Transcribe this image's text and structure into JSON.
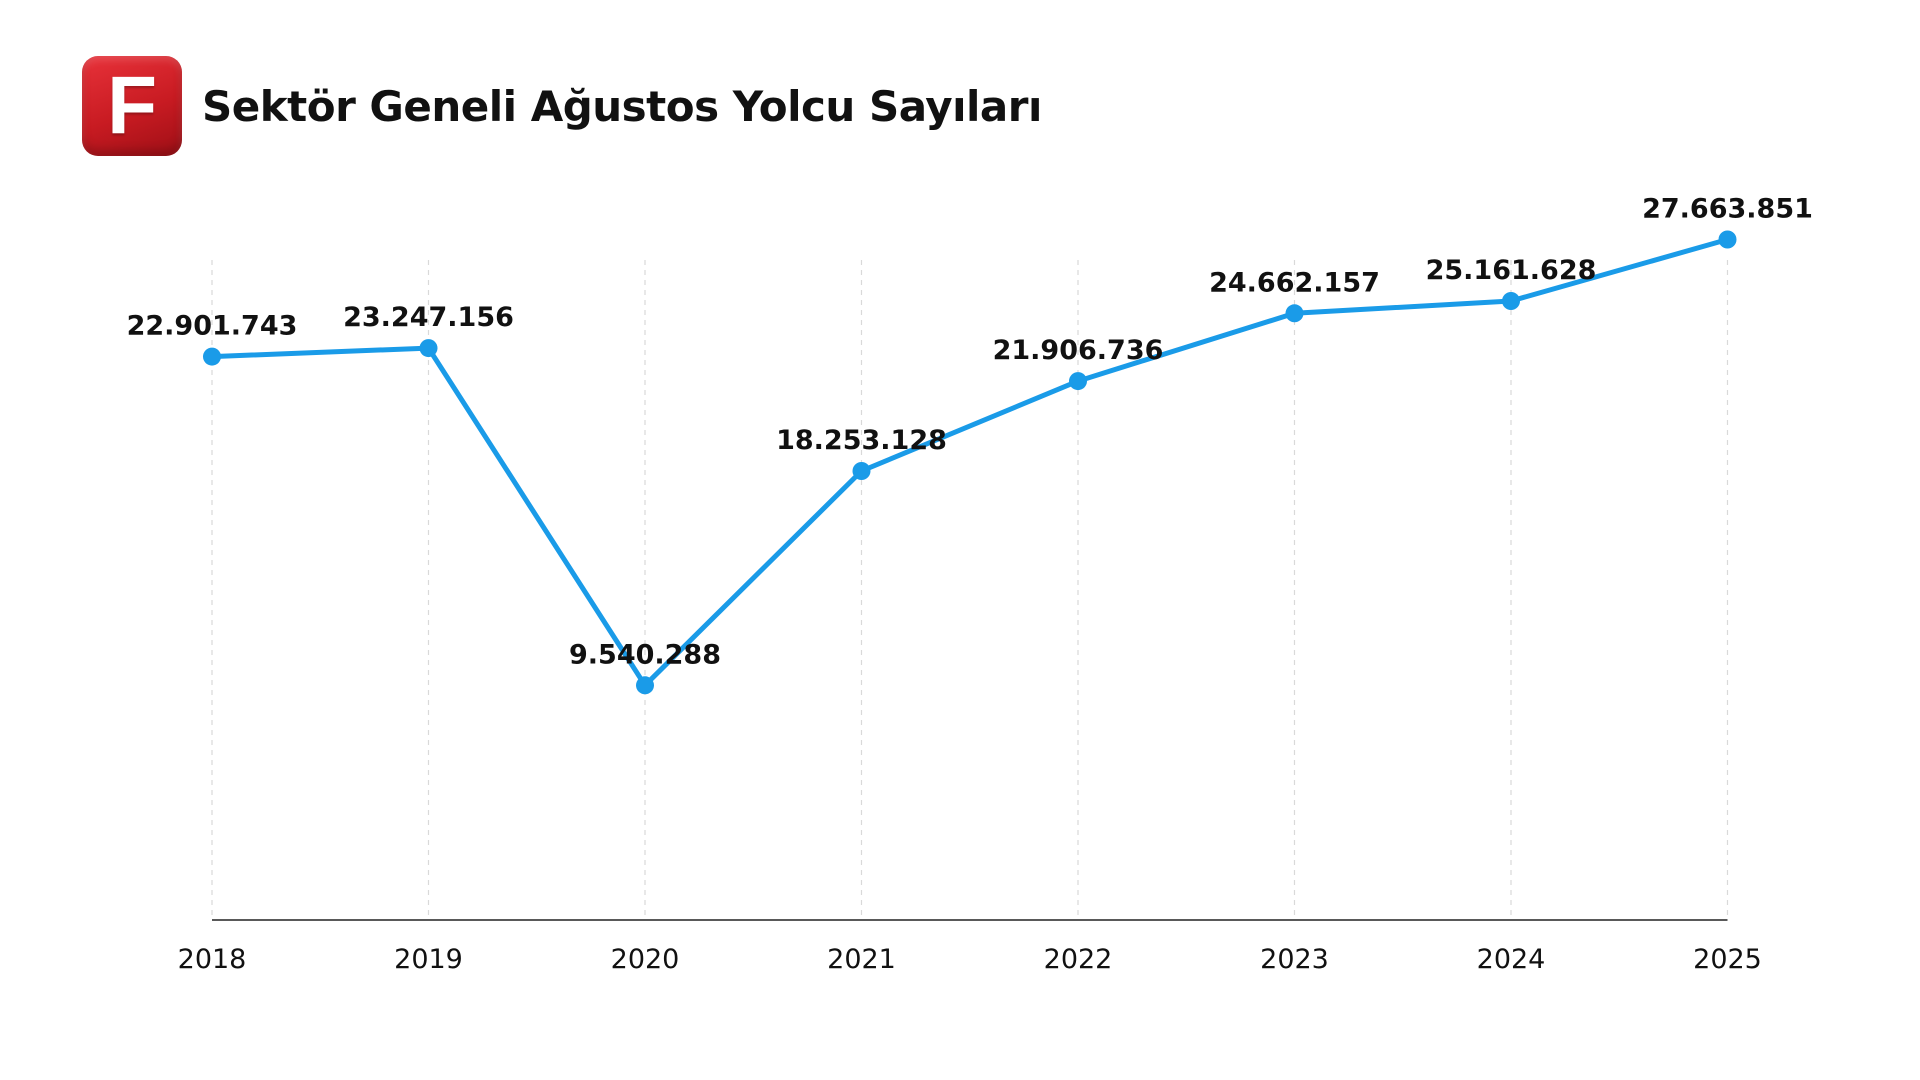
{
  "header": {
    "logo_letter": "F",
    "title": "Sektör Geneli Ağustos Yolcu Sayıları"
  },
  "colors": {
    "line": "#1a9be8",
    "marker": "#1a9be8",
    "grid": "#d9d9d9",
    "axis": "#222222",
    "logo": "#d0222a"
  },
  "chart_data": {
    "type": "line",
    "title": "Sektör Geneli Ağustos Yolcu Sayıları",
    "xlabel": "",
    "ylabel": "",
    "categories": [
      "2018",
      "2019",
      "2020",
      "2021",
      "2022",
      "2023",
      "2024",
      "2025"
    ],
    "series": [
      {
        "values": [
          22901743,
          23247156,
          9540288,
          18253128,
          21906736,
          24662157,
          25161628,
          27663851
        ],
        "labels": [
          "22.901.743",
          "23.247.156",
          "9.540.288",
          "18.253.128",
          "21.906.736",
          "24.662.157",
          "25.161.628",
          "27.663.851"
        ]
      }
    ],
    "ylim": [
      0,
      30000000
    ],
    "grid": "vertical dashed",
    "legend": "none"
  }
}
